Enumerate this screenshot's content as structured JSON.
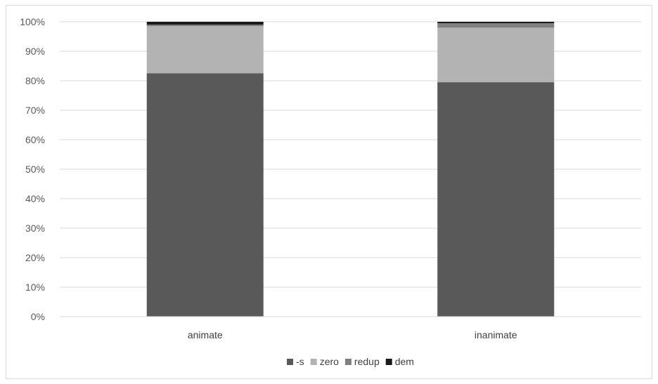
{
  "chart_data": {
    "type": "bar",
    "stacked": true,
    "normalized": true,
    "categories": [
      "animate",
      "inanimate"
    ],
    "series": [
      {
        "name": "-s",
        "values": [
          82.5,
          79.5
        ],
        "color": "#595959"
      },
      {
        "name": "zero",
        "values": [
          16.0,
          18.5
        ],
        "color": "#b3b3b3"
      },
      {
        "name": "redup",
        "values": [
          0.5,
          1.5
        ],
        "color": "#808080"
      },
      {
        "name": "dem",
        "values": [
          1.0,
          0.5
        ],
        "color": "#1a1a1a"
      }
    ],
    "y_ticks": [
      "0%",
      "10%",
      "20%",
      "30%",
      "40%",
      "50%",
      "60%",
      "70%",
      "80%",
      "90%",
      "100%"
    ],
    "ylim": [
      0,
      100
    ],
    "grid": true,
    "legend_position": "bottom",
    "title": "",
    "xlabel": "",
    "ylabel": ""
  }
}
